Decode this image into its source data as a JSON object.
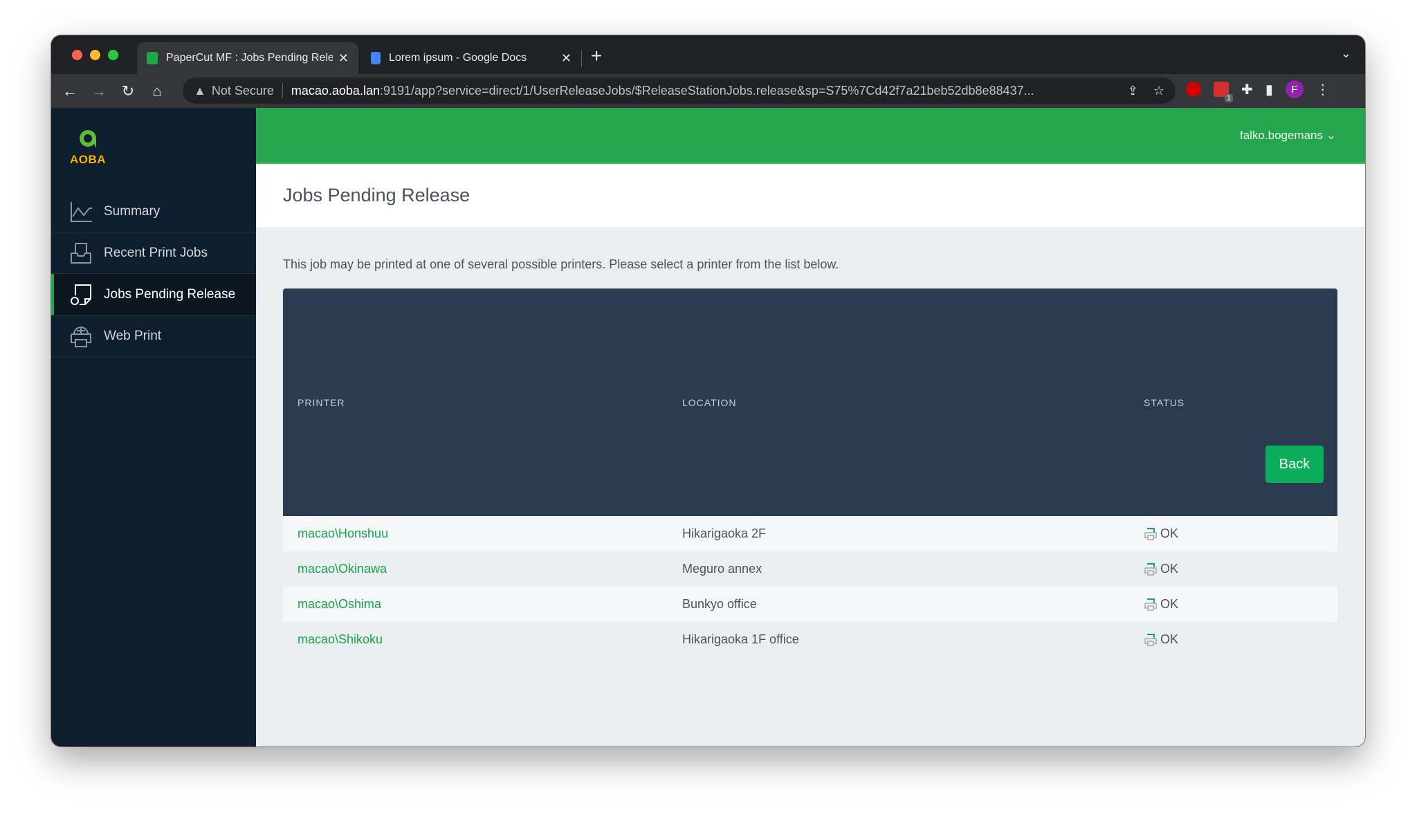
{
  "browser": {
    "tabs": [
      {
        "title": "PaperCut MF : Jobs Pending Release",
        "active": true,
        "icon": "papercut-icon"
      },
      {
        "title": "Lorem ipsum - Google Docs",
        "active": false,
        "icon": "google-docs-icon"
      }
    ],
    "security": "Not Secure",
    "url_host": "macao.aoba.lan",
    "url_rest": ":9191/app?service=direct/1/UserReleaseJobs/$ReleaseStationJobs.release&sp=S75%7Cd42f7a21beb52db8e88437...",
    "extension_badge": "1",
    "profile_initial": "F"
  },
  "logo": {
    "text": "AOBA",
    "color": "#f5b400"
  },
  "sidebar": {
    "items": [
      {
        "label": "Summary",
        "icon": "chart-line-icon"
      },
      {
        "label": "Recent Print Jobs",
        "icon": "tray-icon"
      },
      {
        "label": "Jobs Pending Release",
        "icon": "pending-document-icon",
        "active": true
      },
      {
        "label": "Web Print",
        "icon": "web-printer-icon"
      }
    ]
  },
  "header": {
    "user": "falko.bogemans",
    "accent": "#25a54d"
  },
  "page": {
    "title": "Jobs Pending Release",
    "description": "This job may be printed at one of several possible printers. Please select a printer from the list below."
  },
  "table": {
    "columns": [
      "PRINTER",
      "LOCATION",
      "STATUS"
    ],
    "rows": [
      {
        "printer": "macao\\Honshuu",
        "location": "Hikarigaoka 2F",
        "status": "OK"
      },
      {
        "printer": "macao\\Okinawa",
        "location": "Meguro annex",
        "status": "OK"
      },
      {
        "printer": "macao\\Oshima",
        "location": "Bunkyo office",
        "status": "OK"
      },
      {
        "printer": "macao\\Shikoku",
        "location": "Hikarigaoka 1F office",
        "status": "OK"
      }
    ]
  },
  "actions": {
    "back": "Back"
  }
}
